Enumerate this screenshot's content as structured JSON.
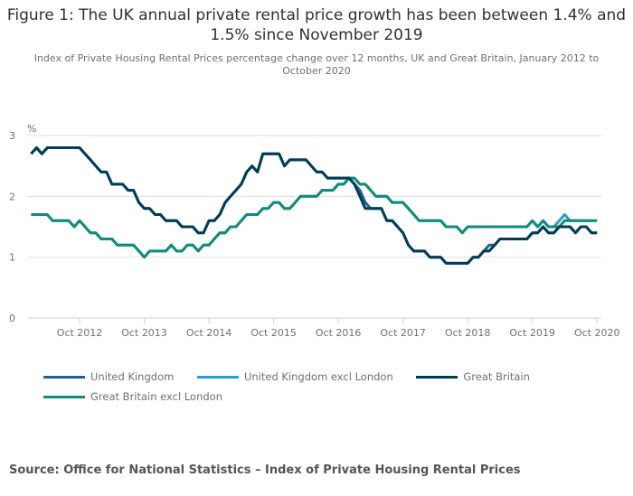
{
  "chart_data": {
    "type": "line",
    "title": "Figure 1: The UK annual private rental price growth has been between 1.4% and 1.5% since November 2019",
    "subtitle": "Index of Private Housing Rental Prices percentage change over 12 months, UK and Great Britain, January 2012 to October 2020",
    "ylabel": "%",
    "xlabel": "",
    "ylim": [
      0,
      3
    ],
    "yticks": [
      "0",
      "1",
      "2",
      "3"
    ],
    "grid": true,
    "x_start": "Jan 2012",
    "x_end": "Oct 2020",
    "xtick_labels": [
      "Oct 2012",
      "Oct 2013",
      "Oct 2014",
      "Oct 2015",
      "Oct 2016",
      "Oct 2017",
      "Oct 2018",
      "Oct 2019",
      "Oct 2020"
    ],
    "xtick_month_index": [
      9,
      21,
      33,
      45,
      57,
      69,
      81,
      93,
      105
    ],
    "legend_position": "bottom",
    "series": [
      {
        "name": "United Kingdom",
        "color": "#206095",
        "values": [
          2.7,
          2.8,
          2.7,
          2.8,
          2.8,
          2.8,
          2.8,
          2.8,
          2.8,
          2.8,
          2.7,
          2.6,
          2.5,
          2.4,
          2.4,
          2.2,
          2.2,
          2.2,
          2.1,
          2.1,
          1.9,
          1.8,
          1.8,
          1.7,
          1.7,
          1.6,
          1.6,
          1.6,
          1.5,
          1.5,
          1.5,
          1.4,
          1.4,
          1.6,
          1.6,
          1.7,
          1.9,
          2.0,
          2.1,
          2.2,
          2.4,
          2.5,
          2.4,
          2.7,
          2.7,
          2.7,
          2.7,
          2.5,
          2.6,
          2.6,
          2.6,
          2.6,
          2.5,
          2.4,
          2.4,
          2.3,
          2.3,
          2.3,
          2.3,
          2.3,
          2.2,
          2.1,
          1.9,
          1.8,
          1.8,
          1.8,
          1.6,
          1.6,
          1.5,
          1.4,
          1.2,
          1.1,
          1.1,
          1.1,
          1.0,
          1.0,
          1.0,
          0.9,
          0.9,
          0.9,
          0.9,
          0.9,
          1.0,
          1.0,
          1.1,
          1.2,
          1.2,
          1.3,
          1.3,
          1.3,
          1.3,
          1.3,
          1.3,
          1.4,
          1.4,
          1.5,
          1.4,
          1.4,
          1.5,
          1.5,
          1.5,
          1.4,
          1.5,
          1.5,
          1.4,
          1.4
        ]
      },
      {
        "name": "United Kingdom excl London",
        "color": "#27a0cc",
        "values": [
          1.7,
          1.7,
          1.7,
          1.7,
          1.6,
          1.6,
          1.6,
          1.6,
          1.5,
          1.6,
          1.5,
          1.4,
          1.4,
          1.3,
          1.3,
          1.3,
          1.2,
          1.2,
          1.2,
          1.2,
          1.1,
          1.0,
          1.1,
          1.1,
          1.1,
          1.1,
          1.2,
          1.1,
          1.1,
          1.2,
          1.2,
          1.1,
          1.2,
          1.2,
          1.3,
          1.4,
          1.4,
          1.5,
          1.5,
          1.6,
          1.7,
          1.7,
          1.7,
          1.8,
          1.8,
          1.9,
          1.9,
          1.8,
          1.8,
          1.9,
          2.0,
          2.0,
          2.0,
          2.0,
          2.1,
          2.1,
          2.1,
          2.2,
          2.2,
          2.3,
          2.3,
          2.2,
          2.2,
          2.1,
          2.0,
          2.0,
          2.0,
          1.9,
          1.9,
          1.9,
          1.8,
          1.7,
          1.6,
          1.6,
          1.6,
          1.6,
          1.6,
          1.5,
          1.5,
          1.5,
          1.4,
          1.5,
          1.5,
          1.5,
          1.5,
          1.5,
          1.5,
          1.5,
          1.5,
          1.5,
          1.5,
          1.5,
          1.5,
          1.6,
          1.5,
          1.6,
          1.5,
          1.5,
          1.6,
          1.7,
          1.6,
          1.6,
          1.6,
          1.6,
          1.6,
          1.6
        ]
      },
      {
        "name": "Great Britain",
        "color": "#003c57",
        "values": [
          2.7,
          2.8,
          2.7,
          2.8,
          2.8,
          2.8,
          2.8,
          2.8,
          2.8,
          2.8,
          2.7,
          2.6,
          2.5,
          2.4,
          2.4,
          2.2,
          2.2,
          2.2,
          2.1,
          2.1,
          1.9,
          1.8,
          1.8,
          1.7,
          1.7,
          1.6,
          1.6,
          1.6,
          1.5,
          1.5,
          1.5,
          1.4,
          1.4,
          1.6,
          1.6,
          1.7,
          1.9,
          2.0,
          2.1,
          2.2,
          2.4,
          2.5,
          2.4,
          2.7,
          2.7,
          2.7,
          2.7,
          2.5,
          2.6,
          2.6,
          2.6,
          2.6,
          2.5,
          2.4,
          2.4,
          2.3,
          2.3,
          2.3,
          2.3,
          2.3,
          2.2,
          2.0,
          1.8,
          1.8,
          1.8,
          1.8,
          1.6,
          1.6,
          1.5,
          1.4,
          1.2,
          1.1,
          1.1,
          1.1,
          1.0,
          1.0,
          1.0,
          0.9,
          0.9,
          0.9,
          0.9,
          0.9,
          1.0,
          1.0,
          1.1,
          1.1,
          1.2,
          1.3,
          1.3,
          1.3,
          1.3,
          1.3,
          1.3,
          1.4,
          1.4,
          1.5,
          1.4,
          1.4,
          1.5,
          1.5,
          1.5,
          1.4,
          1.5,
          1.5,
          1.4,
          1.4
        ]
      },
      {
        "name": "Great Britain excl London",
        "color": "#118c7b",
        "values": [
          1.7,
          1.7,
          1.7,
          1.7,
          1.6,
          1.6,
          1.6,
          1.6,
          1.5,
          1.6,
          1.5,
          1.4,
          1.4,
          1.3,
          1.3,
          1.3,
          1.2,
          1.2,
          1.2,
          1.2,
          1.1,
          1.0,
          1.1,
          1.1,
          1.1,
          1.1,
          1.2,
          1.1,
          1.1,
          1.2,
          1.2,
          1.1,
          1.2,
          1.2,
          1.3,
          1.4,
          1.4,
          1.5,
          1.5,
          1.6,
          1.7,
          1.7,
          1.7,
          1.8,
          1.8,
          1.9,
          1.9,
          1.8,
          1.8,
          1.9,
          2.0,
          2.0,
          2.0,
          2.0,
          2.1,
          2.1,
          2.1,
          2.2,
          2.2,
          2.3,
          2.3,
          2.2,
          2.2,
          2.1,
          2.0,
          2.0,
          2.0,
          1.9,
          1.9,
          1.9,
          1.8,
          1.7,
          1.6,
          1.6,
          1.6,
          1.6,
          1.6,
          1.5,
          1.5,
          1.5,
          1.4,
          1.5,
          1.5,
          1.5,
          1.5,
          1.5,
          1.5,
          1.5,
          1.5,
          1.5,
          1.5,
          1.5,
          1.5,
          1.6,
          1.5,
          1.6,
          1.5,
          1.5,
          1.5,
          1.6,
          1.6,
          1.6,
          1.6,
          1.6,
          1.6,
          1.6
        ]
      }
    ]
  },
  "source": "Source: Office for National Statistics – Index of Private Housing Rental Prices"
}
